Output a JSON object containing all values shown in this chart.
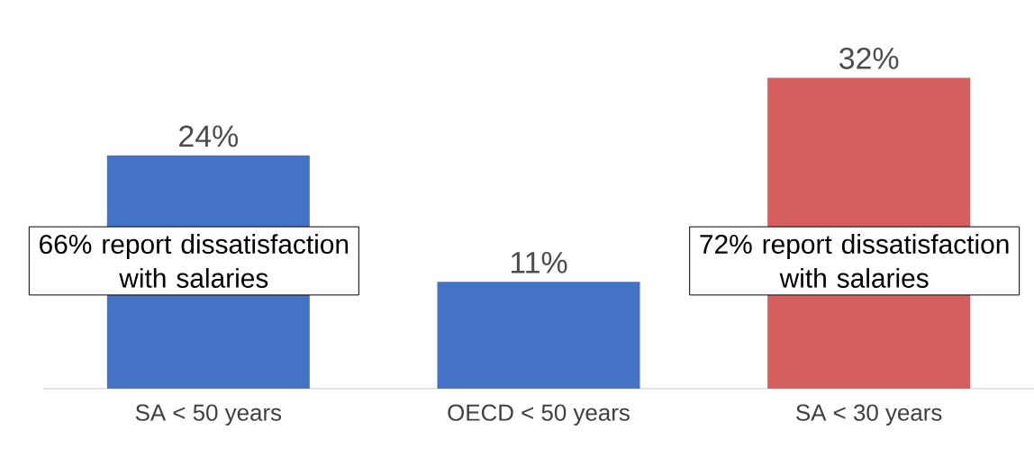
{
  "chart_data": {
    "type": "bar",
    "categories": [
      "SA < 50 years",
      "OECD < 50 years",
      "SA < 30 years"
    ],
    "values": [
      24,
      11,
      32
    ],
    "colors": [
      "#4472c4",
      "#4472c4",
      "#d55f5f"
    ],
    "value_labels": [
      "24%",
      "11%",
      "32%"
    ],
    "annotations": [
      "66% report dissatisfaction with salaries",
      "72% report dissatisfaction with salaries"
    ]
  }
}
